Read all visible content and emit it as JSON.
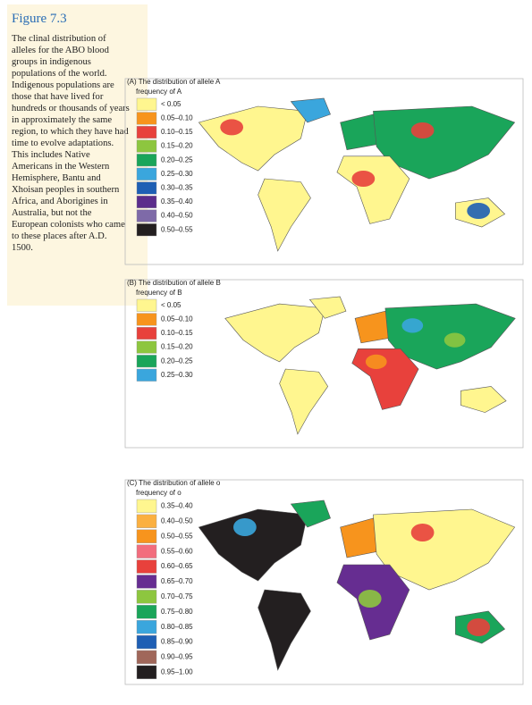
{
  "figure": {
    "label": "Figure 7.3",
    "caption": "The clinal distribution of alleles for the ABO blood groups in indigenous populations of the world. Indigenous populations are those that have lived for hundreds or thousands of years in approximately the same region, to which they have had time to evolve adaptations. This includes Native Americans in the Western Hemisphere, Bantu and Xhoisan peoples in southern Africa, and Aborigines in Australia, but not the European colonists who came to these places after A.D. 1500."
  },
  "panels": [
    {
      "title": "(A) The distribution of allele A",
      "legend_title": "frequency of A",
      "legend": [
        {
          "label": "< 0.05",
          "color": "#fff68f"
        },
        {
          "label": "0.05–0.10",
          "color": "#f7941d"
        },
        {
          "label": "0.10–0.15",
          "color": "#e8413c"
        },
        {
          "label": "0.15–0.20",
          "color": "#8dc63f"
        },
        {
          "label": "0.20–0.25",
          "color": "#1aa55a"
        },
        {
          "label": "0.25–0.30",
          "color": "#3aa6dd"
        },
        {
          "label": "0.30–0.35",
          "color": "#1e5fb4"
        },
        {
          "label": "0.35–0.40",
          "color": "#5b2c8c"
        },
        {
          "label": "0.40–0.50",
          "color": "#7e6aa8"
        },
        {
          "label": "0.50–0.55",
          "color": "#231f20"
        }
      ]
    },
    {
      "title": "(B) The distribution of allele B",
      "legend_title": "frequency of B",
      "legend": [
        {
          "label": "< 0.05",
          "color": "#fff68f"
        },
        {
          "label": "0.05–0.10",
          "color": "#f7941d"
        },
        {
          "label": "0.10–0.15",
          "color": "#e8413c"
        },
        {
          "label": "0.15–0.20",
          "color": "#8dc63f"
        },
        {
          "label": "0.20–0.25",
          "color": "#1aa55a"
        },
        {
          "label": "0.25–0.30",
          "color": "#3aa6dd"
        }
      ]
    },
    {
      "title": "(C) The distribution of allele o",
      "legend_title": "frequency of o",
      "legend": [
        {
          "label": "0.35–0.40",
          "color": "#fff68f"
        },
        {
          "label": "0.40–0.50",
          "color": "#fbb040"
        },
        {
          "label": "0.50–0.55",
          "color": "#f7941d"
        },
        {
          "label": "0.55–0.60",
          "color": "#f26d7d"
        },
        {
          "label": "0.60–0.65",
          "color": "#e8413c"
        },
        {
          "label": "0.65–0.70",
          "color": "#662d91"
        },
        {
          "label": "0.70–0.75",
          "color": "#8dc63f"
        },
        {
          "label": "0.75–0.80",
          "color": "#1aa55a"
        },
        {
          "label": "0.80–0.85",
          "color": "#3aa6dd"
        },
        {
          "label": "0.85–0.90",
          "color": "#1e5fb4"
        },
        {
          "label": "0.90–0.95",
          "color": "#a0675a"
        },
        {
          "label": "0.95–1.00",
          "color": "#231f20"
        }
      ]
    }
  ]
}
